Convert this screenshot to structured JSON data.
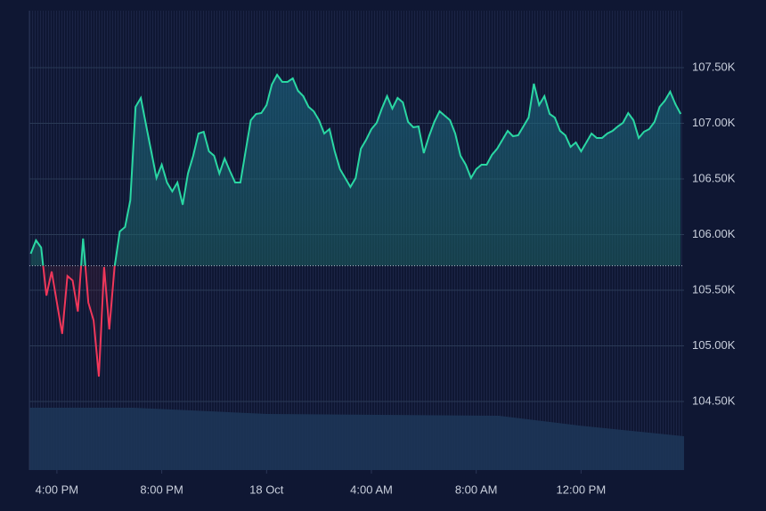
{
  "chart_data": {
    "type": "baseline",
    "x": [
      15,
      15.2,
      15.4,
      15.6,
      15.8,
      16,
      16.2,
      16.4,
      16.6,
      16.8,
      17,
      17.2,
      17.4,
      17.6,
      17.8,
      18,
      18.2,
      18.4,
      18.6,
      18.8,
      19,
      19.2,
      19.4,
      19.6,
      19.8,
      20,
      20.2,
      20.4,
      20.6,
      20.8,
      21,
      21.2,
      21.4,
      21.6,
      21.8,
      22,
      22.2,
      22.4,
      22.6,
      22.8,
      23,
      23.2,
      23.4,
      23.6,
      23.8,
      24,
      24.2,
      24.4,
      24.6,
      24.8,
      25,
      25.2,
      25.4,
      25.6,
      25.8,
      26,
      26.2,
      26.4,
      26.6,
      26.8,
      27,
      27.2,
      27.4,
      27.6,
      27.8,
      28,
      28.2,
      28.4,
      28.6,
      28.8,
      29,
      29.2,
      29.4,
      29.6,
      29.8,
      30,
      30.2,
      30.4,
      30.6,
      30.8,
      31,
      31.2,
      31.4,
      31.6,
      31.8,
      32,
      32.2,
      32.4,
      32.6,
      32.8,
      33,
      33.2,
      33.4,
      33.6,
      33.8,
      34,
      34.2,
      34.4,
      34.6,
      34.8,
      35,
      35.2,
      35.4,
      35.6,
      35.8,
      36,
      36.2,
      36.4,
      36.6,
      36.8,
      37,
      37.2,
      37.4,
      37.6,
      37.8,
      38,
      38.2,
      38.4,
      38.6,
      38.8,
      39,
      39.2,
      39.4,
      39.6,
      39.8
    ],
    "values": [
      105828,
      105948,
      105884,
      105452,
      105668,
      105388,
      105108,
      105628,
      105588,
      105308,
      105964,
      105388,
      105228,
      104724,
      105708,
      105148,
      105708,
      106028,
      106068,
      106308,
      107148,
      107228,
      106988,
      106748,
      106508,
      106628,
      106468,
      106388,
      106468,
      106268,
      106548,
      106708,
      106908,
      106924,
      106748,
      106708,
      106548,
      106684,
      106572,
      106468,
      106468,
      106748,
      107028,
      107084,
      107092,
      107164,
      107348,
      107436,
      107372,
      107372,
      107404,
      107292,
      107244,
      107148,
      107108,
      107028,
      106908,
      106948,
      106748,
      106588,
      106508,
      106428,
      106508,
      106772,
      106852,
      106948,
      107004,
      107132,
      107244,
      107132,
      107228,
      107188,
      107012,
      106964,
      106972,
      106732,
      106884,
      107012,
      107108,
      107068,
      107028,
      106908,
      106708,
      106628,
      106508,
      106588,
      106628,
      106628,
      106716,
      106772,
      106852,
      106932,
      106884,
      106892,
      106972,
      107052,
      107356,
      107164,
      107244,
      107084,
      107052,
      106932,
      106892,
      106788,
      106828,
      106748,
      106828,
      106908,
      106868,
      106868,
      106908,
      106932,
      106972,
      107004,
      107092,
      107028,
      106868,
      106924,
      106948,
      107012,
      107148,
      107204,
      107284,
      107172,
      107084
    ],
    "baseline": 105720,
    "up_color": "#2ad7a3",
    "down_color": "#f0375a",
    "xlim": [
      14.95,
      39.93
    ],
    "xticks": [
      {
        "value": 16,
        "label": "4:00 PM"
      },
      {
        "value": 20,
        "label": "8:00 PM"
      },
      {
        "value": 24,
        "label": "18 Oct"
      },
      {
        "value": 28,
        "label": "4:00 AM"
      },
      {
        "value": 32,
        "label": "8:00 AM"
      },
      {
        "value": 36,
        "label": "12:00 PM"
      }
    ],
    "ylim": [
      103884,
      108012
    ],
    "yticks": [
      {
        "value": 104500,
        "label": "104.50K"
      },
      {
        "value": 105000,
        "label": "105.00K"
      },
      {
        "value": 105500,
        "label": "105.50K"
      },
      {
        "value": 106000,
        "label": "106.00K"
      },
      {
        "value": 106500,
        "label": "106.50K"
      },
      {
        "value": 107000,
        "label": "107.00K"
      },
      {
        "value": 107500,
        "label": "107.50K"
      }
    ],
    "grid": true
  }
}
